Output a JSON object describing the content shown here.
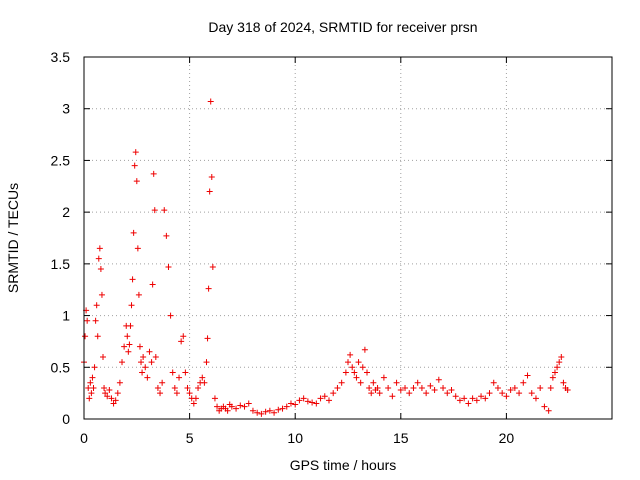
{
  "chart_data": {
    "type": "scatter",
    "title": "Day 318 of 2024, SRMTID for receiver prsn",
    "xlabel": "GPS time / hours",
    "ylabel": "SRMTID / TECUs",
    "xlim": [
      0,
      25
    ],
    "ylim": [
      0,
      3.5
    ],
    "xticks": [
      0,
      5,
      10,
      15,
      20
    ],
    "xtick_labels": [
      "0",
      "5",
      "10",
      "15",
      "20"
    ],
    "yticks": [
      0,
      0.5,
      1,
      1.5,
      2,
      2.5,
      3,
      3.5
    ],
    "ytick_labels": [
      "0",
      "0.5",
      "1",
      "1.5",
      "2",
      "2.5",
      "3",
      "3.5"
    ],
    "grid": true,
    "marker": "+",
    "color": "#ee0000",
    "series": [
      {
        "name": "SRMTID",
        "x": [
          0.0,
          0.05,
          0.1,
          0.15,
          0.2,
          0.25,
          0.3,
          0.35,
          0.4,
          0.45,
          0.5,
          0.55,
          0.6,
          0.65,
          0.7,
          0.75,
          0.8,
          0.85,
          0.9,
          0.95,
          1.0,
          1.1,
          1.2,
          1.3,
          1.4,
          1.5,
          1.6,
          1.7,
          1.8,
          1.9,
          2.0,
          2.05,
          2.1,
          2.15,
          2.2,
          2.25,
          2.3,
          2.35,
          2.4,
          2.45,
          2.5,
          2.55,
          2.6,
          2.65,
          2.7,
          2.75,
          2.8,
          2.9,
          3.0,
          3.1,
          3.2,
          3.25,
          3.3,
          3.35,
          3.4,
          3.5,
          3.6,
          3.7,
          3.8,
          3.9,
          4.0,
          4.1,
          4.2,
          4.3,
          4.4,
          4.5,
          4.6,
          4.7,
          4.8,
          4.9,
          5.0,
          5.1,
          5.2,
          5.3,
          5.4,
          5.5,
          5.6,
          5.7,
          5.8,
          5.85,
          5.9,
          5.95,
          6.0,
          6.05,
          6.1,
          6.2,
          6.3,
          6.4,
          6.5,
          6.6,
          6.7,
          6.8,
          6.9,
          7.0,
          7.2,
          7.4,
          7.6,
          7.8,
          8.0,
          8.2,
          8.4,
          8.6,
          8.8,
          9.0,
          9.2,
          9.4,
          9.6,
          9.8,
          10.0,
          10.2,
          10.4,
          10.6,
          10.8,
          11.0,
          11.2,
          11.4,
          11.6,
          11.8,
          12.0,
          12.2,
          12.4,
          12.5,
          12.6,
          12.7,
          12.8,
          12.9,
          13.0,
          13.1,
          13.2,
          13.3,
          13.4,
          13.5,
          13.6,
          13.7,
          13.8,
          13.9,
          14.0,
          14.2,
          14.4,
          14.6,
          14.8,
          15.0,
          15.2,
          15.4,
          15.6,
          15.8,
          16.0,
          16.2,
          16.4,
          16.6,
          16.8,
          17.0,
          17.2,
          17.4,
          17.6,
          17.8,
          18.0,
          18.2,
          18.4,
          18.6,
          18.8,
          19.0,
          19.2,
          19.4,
          19.6,
          19.8,
          20.0,
          20.2,
          20.4,
          20.6,
          20.8,
          21.0,
          21.2,
          21.4,
          21.6,
          21.8,
          22.0,
          22.1,
          22.2,
          22.3,
          22.4,
          22.5,
          22.6,
          22.7,
          22.8,
          22.9
        ],
        "y": [
          0.55,
          0.8,
          1.05,
          0.95,
          0.3,
          0.2,
          0.35,
          0.25,
          0.4,
          0.3,
          0.5,
          0.95,
          1.1,
          0.8,
          1.55,
          1.65,
          1.45,
          1.2,
          0.6,
          0.3,
          0.25,
          0.22,
          0.28,
          0.2,
          0.15,
          0.18,
          0.25,
          0.35,
          0.55,
          0.7,
          0.9,
          0.8,
          0.65,
          0.72,
          0.9,
          1.1,
          1.35,
          1.8,
          2.45,
          2.58,
          2.3,
          1.65,
          1.2,
          0.7,
          0.55,
          0.45,
          0.6,
          0.5,
          0.4,
          0.65,
          0.55,
          1.3,
          2.37,
          2.02,
          0.6,
          0.3,
          0.25,
          0.35,
          2.02,
          1.77,
          1.47,
          1.0,
          0.45,
          0.3,
          0.25,
          0.4,
          0.75,
          0.8,
          0.45,
          0.3,
          0.25,
          0.2,
          0.15,
          0.2,
          0.3,
          0.35,
          0.4,
          0.35,
          0.55,
          0.78,
          1.26,
          2.2,
          3.07,
          2.34,
          1.47,
          0.2,
          0.12,
          0.08,
          0.1,
          0.12,
          0.1,
          0.08,
          0.14,
          0.12,
          0.1,
          0.13,
          0.12,
          0.15,
          0.08,
          0.06,
          0.05,
          0.07,
          0.08,
          0.06,
          0.09,
          0.1,
          0.12,
          0.15,
          0.14,
          0.18,
          0.2,
          0.17,
          0.16,
          0.15,
          0.2,
          0.22,
          0.18,
          0.25,
          0.3,
          0.35,
          0.45,
          0.55,
          0.62,
          0.5,
          0.45,
          0.4,
          0.55,
          0.35,
          0.5,
          0.67,
          0.45,
          0.3,
          0.25,
          0.35,
          0.28,
          0.3,
          0.25,
          0.4,
          0.3,
          0.22,
          0.35,
          0.28,
          0.3,
          0.25,
          0.3,
          0.35,
          0.3,
          0.25,
          0.32,
          0.28,
          0.38,
          0.3,
          0.25,
          0.28,
          0.22,
          0.18,
          0.2,
          0.15,
          0.2,
          0.18,
          0.22,
          0.2,
          0.25,
          0.35,
          0.3,
          0.25,
          0.22,
          0.28,
          0.3,
          0.25,
          0.35,
          0.42,
          0.25,
          0.2,
          0.3,
          0.12,
          0.08,
          0.3,
          0.4,
          0.45,
          0.5,
          0.55,
          0.6,
          0.35,
          0.3,
          0.28
        ]
      }
    ]
  }
}
